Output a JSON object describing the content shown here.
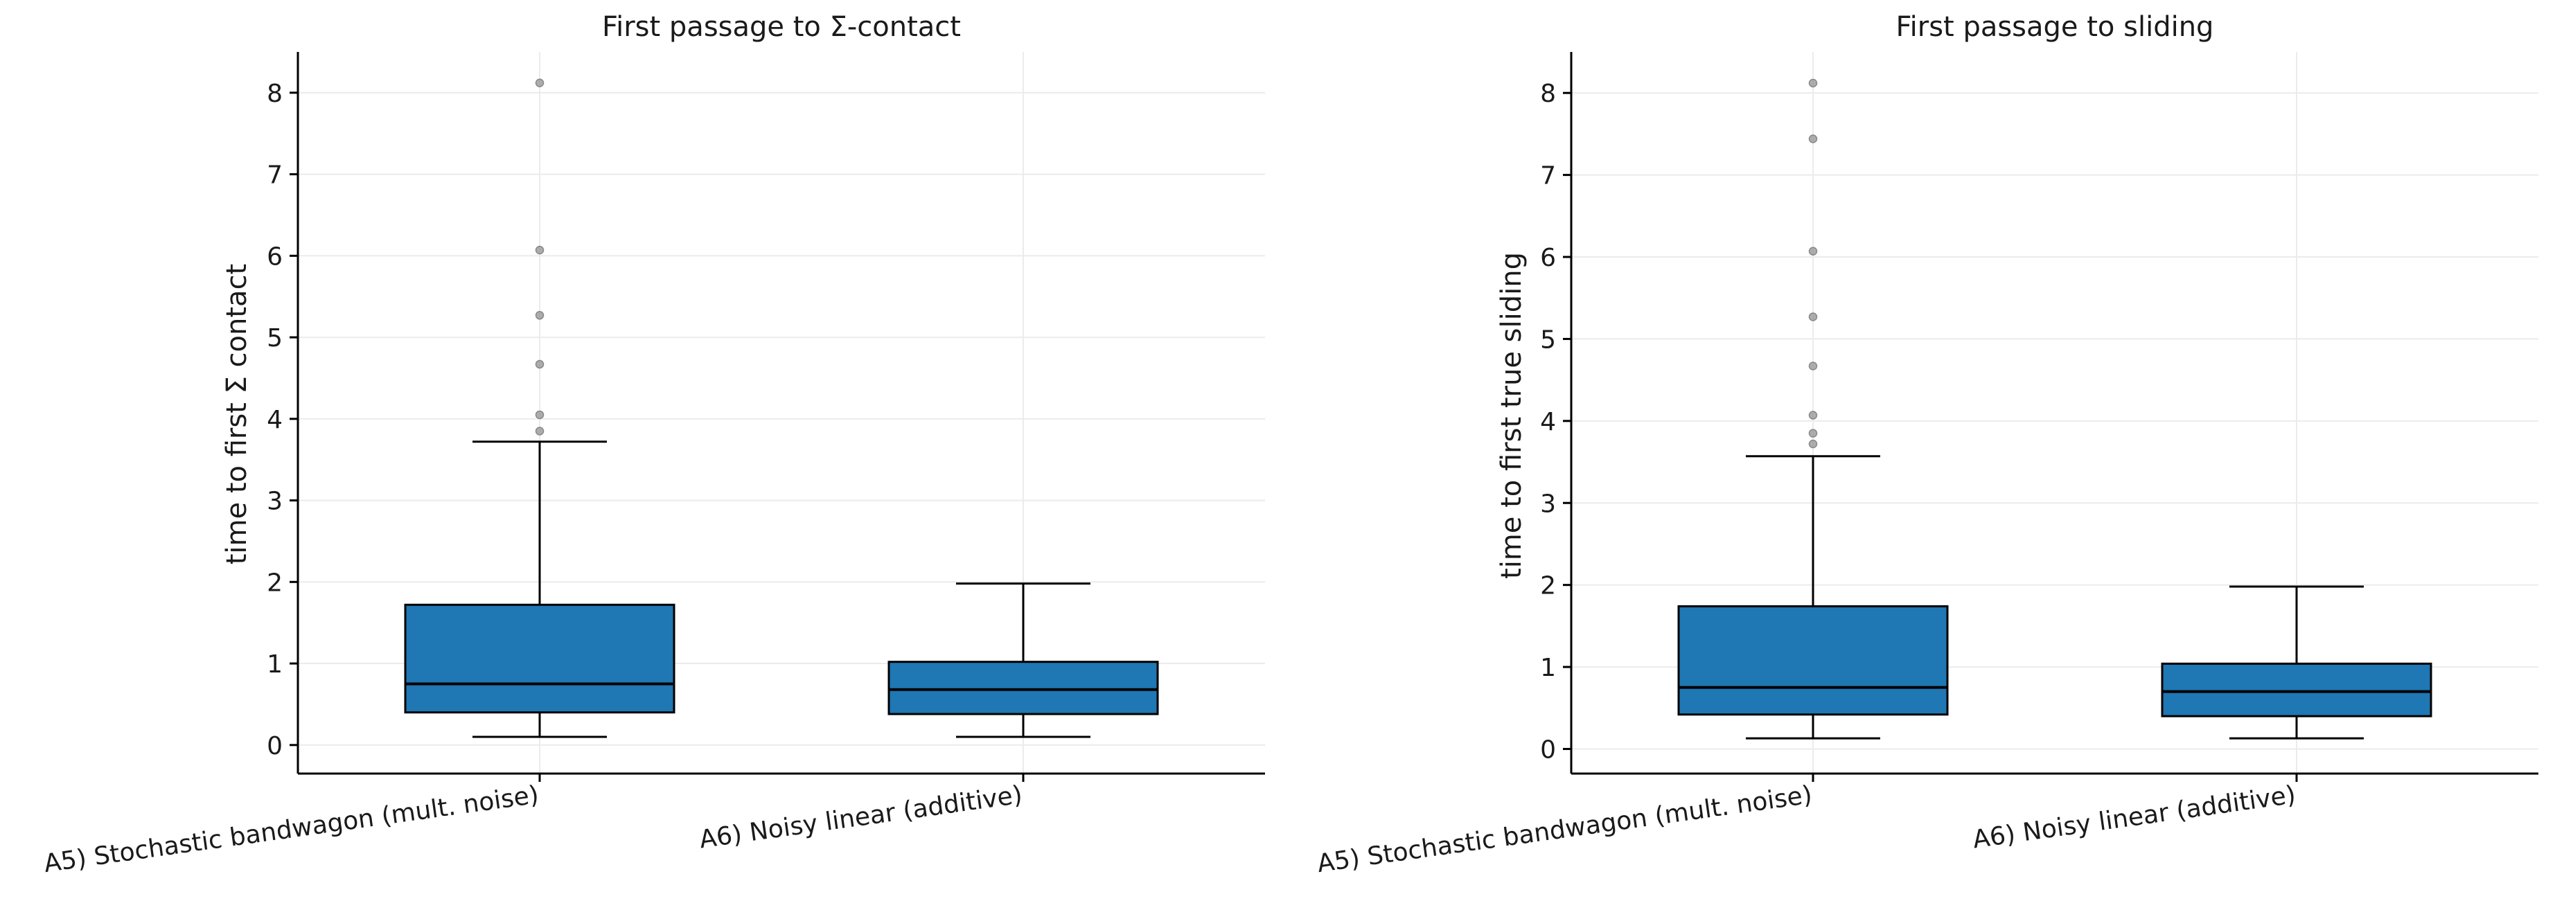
{
  "chart_data": [
    {
      "type": "box",
      "title": "First passage to Σ-contact",
      "xlabel": "",
      "ylabel": "time to first Σ contact",
      "ylim": [
        -0.35,
        8.5
      ],
      "yticks": [
        0,
        1,
        2,
        3,
        4,
        5,
        6,
        7,
        8
      ],
      "grid": true,
      "categories": [
        "A5) Stochastic bandwagon (mult. noise)",
        "A6) Noisy linear (additive)"
      ],
      "boxes": [
        {
          "category": "A5) Stochastic bandwagon (mult. noise)",
          "whisker_low": 0.1,
          "q1": 0.4,
          "median": 0.75,
          "q3": 1.72,
          "whisker_high": 3.72,
          "outliers": [
            3.85,
            4.05,
            4.67,
            5.27,
            6.07,
            8.12
          ]
        },
        {
          "category": "A6) Noisy linear (additive)",
          "whisker_low": 0.1,
          "q1": 0.38,
          "median": 0.68,
          "q3": 1.02,
          "whisker_high": 1.98,
          "outliers": []
        }
      ],
      "colors": {
        "box": "#1f77b4",
        "outlier": "#999999"
      }
    },
    {
      "type": "box",
      "title": "First passage to sliding",
      "xlabel": "",
      "ylabel": "time to first true sliding",
      "ylim": [
        -0.3,
        8.5
      ],
      "yticks": [
        0,
        1,
        2,
        3,
        4,
        5,
        6,
        7,
        8
      ],
      "grid": true,
      "categories": [
        "A5) Stochastic bandwagon (mult. noise)",
        "A6) Noisy linear (additive)"
      ],
      "boxes": [
        {
          "category": "A5) Stochastic bandwagon (mult. noise)",
          "whisker_low": 0.13,
          "q1": 0.42,
          "median": 0.75,
          "q3": 1.74,
          "whisker_high": 3.57,
          "outliers": [
            3.72,
            3.85,
            4.07,
            4.67,
            5.27,
            6.07,
            7.44,
            8.12
          ]
        },
        {
          "category": "A6) Noisy linear (additive)",
          "whisker_low": 0.13,
          "q1": 0.4,
          "median": 0.7,
          "q3": 1.04,
          "whisker_high": 1.98,
          "outliers": []
        }
      ],
      "colors": {
        "box": "#1f77b4",
        "outlier": "#999999"
      }
    }
  ]
}
